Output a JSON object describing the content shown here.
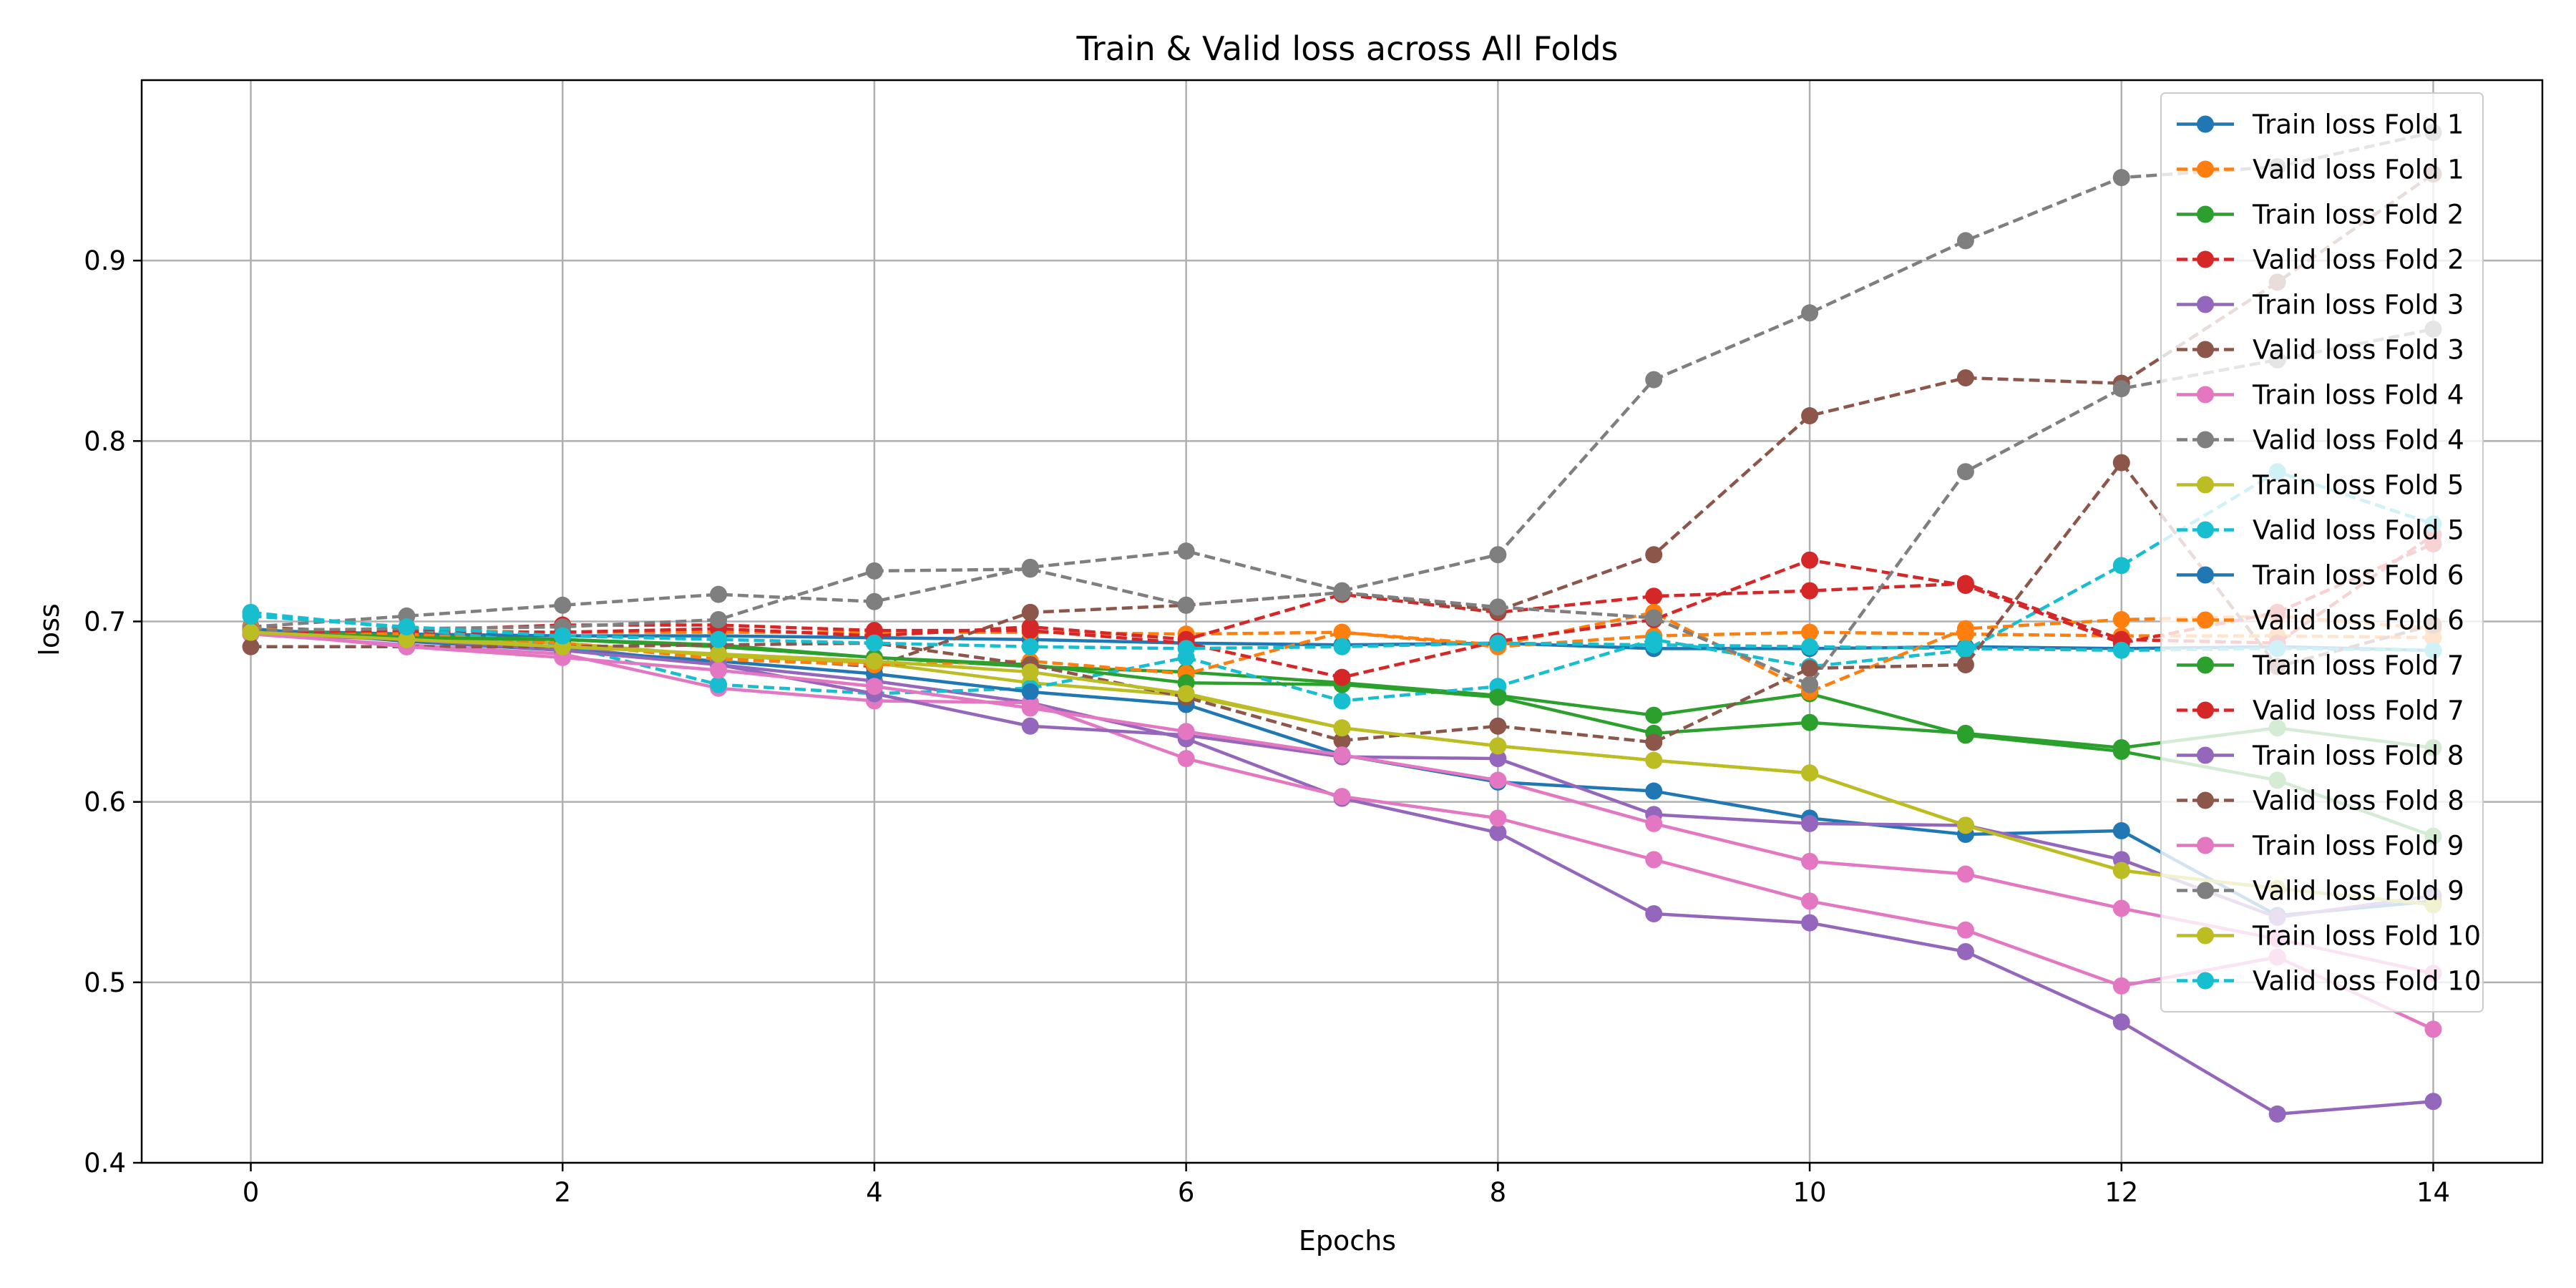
{
  "chart_data": {
    "type": "line",
    "title": "Train & Valid loss across All Folds",
    "xlabel": "Epochs",
    "ylabel": "loss",
    "xlim": [
      -0.7,
      14.7
    ],
    "ylim": [
      0.4,
      1.0
    ],
    "xticks": [
      "0",
      "2",
      "4",
      "6",
      "8",
      "10",
      "12",
      "14"
    ],
    "yticks": [
      "0.4",
      "0.5",
      "0.6",
      "0.7",
      "0.8",
      "0.9"
    ],
    "grid": true,
    "legend_position": "top-right",
    "x": [
      0,
      1,
      2,
      3,
      4,
      5,
      6,
      7,
      8,
      9,
      10,
      11,
      12,
      13,
      14
    ],
    "series": [
      {
        "name": "Train loss Fold 1",
        "color": "#1f77b4",
        "style": "solid",
        "values": [
          0.695,
          0.693,
          0.692,
          0.692,
          0.691,
          0.69,
          0.688,
          0.687,
          0.688,
          0.685,
          0.685,
          0.686,
          0.685,
          0.686,
          0.684
        ]
      },
      {
        "name": "Valid loss Fold 1",
        "color": "#ff7f0e",
        "style": "dashed",
        "values": [
          0.696,
          0.695,
          0.694,
          0.694,
          0.694,
          0.694,
          0.693,
          0.694,
          0.686,
          0.692,
          0.694,
          0.693,
          0.692,
          0.692,
          0.691
        ]
      },
      {
        "name": "Train loss Fold 2",
        "color": "#2ca02c",
        "style": "solid",
        "values": [
          0.695,
          0.692,
          0.69,
          0.687,
          0.68,
          0.675,
          0.672,
          0.666,
          0.659,
          0.648,
          0.66,
          0.637,
          0.628,
          0.612,
          0.581
        ]
      },
      {
        "name": "Valid loss Fold 2",
        "color": "#d62728",
        "style": "dashed",
        "values": [
          0.695,
          0.694,
          0.694,
          0.696,
          0.692,
          0.697,
          0.69,
          0.715,
          0.705,
          0.714,
          0.717,
          0.721,
          0.69,
          0.688,
          0.748
        ]
      },
      {
        "name": "Train loss Fold 3",
        "color": "#9467bd",
        "style": "solid",
        "values": [
          0.693,
          0.69,
          0.686,
          0.676,
          0.667,
          0.655,
          0.635,
          0.602,
          0.583,
          0.538,
          0.533,
          0.517,
          0.478,
          0.427,
          0.434
        ]
      },
      {
        "name": "Valid loss Fold 3",
        "color": "#8c564b",
        "style": "dashed",
        "values": [
          0.697,
          0.693,
          0.688,
          0.681,
          0.675,
          0.705,
          0.709,
          0.716,
          0.706,
          0.737,
          0.814,
          0.835,
          0.832,
          0.888,
          0.948
        ]
      },
      {
        "name": "Train loss Fold 4",
        "color": "#e377c2",
        "style": "solid",
        "values": [
          0.693,
          0.687,
          0.682,
          0.663,
          0.656,
          0.655,
          0.624,
          0.603,
          0.591,
          0.568,
          0.545,
          0.529,
          0.498,
          0.514,
          0.474
        ]
      },
      {
        "name": "Valid loss Fold 4",
        "color": "#7f7f7f",
        "style": "dashed",
        "values": [
          0.697,
          0.703,
          0.709,
          0.715,
          0.711,
          0.73,
          0.739,
          0.717,
          0.737,
          0.834,
          0.871,
          0.911,
          0.946,
          0.952,
          0.971
        ]
      },
      {
        "name": "Train loss Fold 5",
        "color": "#bcbd22",
        "style": "solid",
        "values": [
          0.694,
          0.691,
          0.688,
          0.681,
          0.677,
          0.666,
          0.659,
          0.641,
          0.631,
          0.623,
          0.616,
          0.587,
          0.562,
          0.552,
          0.543
        ]
      },
      {
        "name": "Valid loss Fold 5",
        "color": "#17becf",
        "style": "dashed",
        "values": [
          0.705,
          0.696,
          0.687,
          0.665,
          0.66,
          0.663,
          0.68,
          0.656,
          0.664,
          0.69,
          0.675,
          0.684,
          0.731,
          0.783,
          0.754
        ]
      },
      {
        "name": "Train loss Fold 6",
        "color": "#1f77b4",
        "style": "solid",
        "values": [
          0.696,
          0.689,
          0.684,
          0.678,
          0.671,
          0.661,
          0.654,
          0.626,
          0.611,
          0.606,
          0.591,
          0.582,
          0.584,
          0.537,
          0.545
        ]
      },
      {
        "name": "Valid loss Fold 6",
        "color": "#ff7f0e",
        "style": "dashed",
        "values": [
          0.696,
          0.693,
          0.688,
          0.679,
          0.676,
          0.678,
          0.671,
          0.694,
          0.687,
          0.705,
          0.661,
          0.696,
          0.701,
          0.703,
          0.696
        ]
      },
      {
        "name": "Train loss Fold 7",
        "color": "#2ca02c",
        "style": "solid",
        "values": [
          0.694,
          0.691,
          0.69,
          0.686,
          0.68,
          0.676,
          0.666,
          0.665,
          0.658,
          0.638,
          0.644,
          0.638,
          0.63,
          0.641,
          0.63
        ]
      },
      {
        "name": "Valid loss Fold 7",
        "color": "#d62728",
        "style": "dashed",
        "values": [
          0.694,
          0.695,
          0.698,
          0.698,
          0.695,
          0.695,
          0.688,
          0.669,
          0.689,
          0.701,
          0.734,
          0.72,
          0.688,
          0.705,
          0.743
        ]
      },
      {
        "name": "Train loss Fold 8",
        "color": "#9467bd",
        "style": "solid",
        "values": [
          0.694,
          0.69,
          0.684,
          0.676,
          0.66,
          0.642,
          0.637,
          0.625,
          0.624,
          0.593,
          0.588,
          0.587,
          0.568,
          0.536,
          0.548
        ]
      },
      {
        "name": "Valid loss Fold 8",
        "color": "#8c564b",
        "style": "dashed",
        "values": [
          0.686,
          0.686,
          0.686,
          0.687,
          0.688,
          0.676,
          0.658,
          0.634,
          0.642,
          0.633,
          0.674,
          0.676,
          0.788,
          0.675,
          0.698
        ]
      },
      {
        "name": "Train loss Fold 9",
        "color": "#e377c2",
        "style": "solid",
        "values": [
          0.694,
          0.686,
          0.68,
          0.673,
          0.664,
          0.652,
          0.639,
          0.626,
          0.612,
          0.588,
          0.567,
          0.56,
          0.541,
          0.524,
          0.505
        ]
      },
      {
        "name": "Valid loss Fold 9",
        "color": "#7f7f7f",
        "style": "dashed",
        "values": [
          0.695,
          0.696,
          0.697,
          0.701,
          0.728,
          0.729,
          0.709,
          0.716,
          0.708,
          0.702,
          0.665,
          0.783,
          0.829,
          0.845,
          0.862
        ]
      },
      {
        "name": "Train loss Fold 10",
        "color": "#bcbd22",
        "style": "solid",
        "values": [
          0.694,
          0.69,
          0.686,
          0.682,
          0.678,
          0.672,
          0.66,
          0.641,
          0.631,
          0.623,
          0.616,
          0.587,
          0.562,
          0.552,
          0.543
        ]
      },
      {
        "name": "Valid loss Fold 10",
        "color": "#17becf",
        "style": "dashed",
        "values": [
          0.703,
          0.697,
          0.692,
          0.69,
          0.688,
          0.686,
          0.685,
          0.686,
          0.688,
          0.687,
          0.686,
          0.685,
          0.684,
          0.685,
          0.684
        ]
      }
    ]
  }
}
